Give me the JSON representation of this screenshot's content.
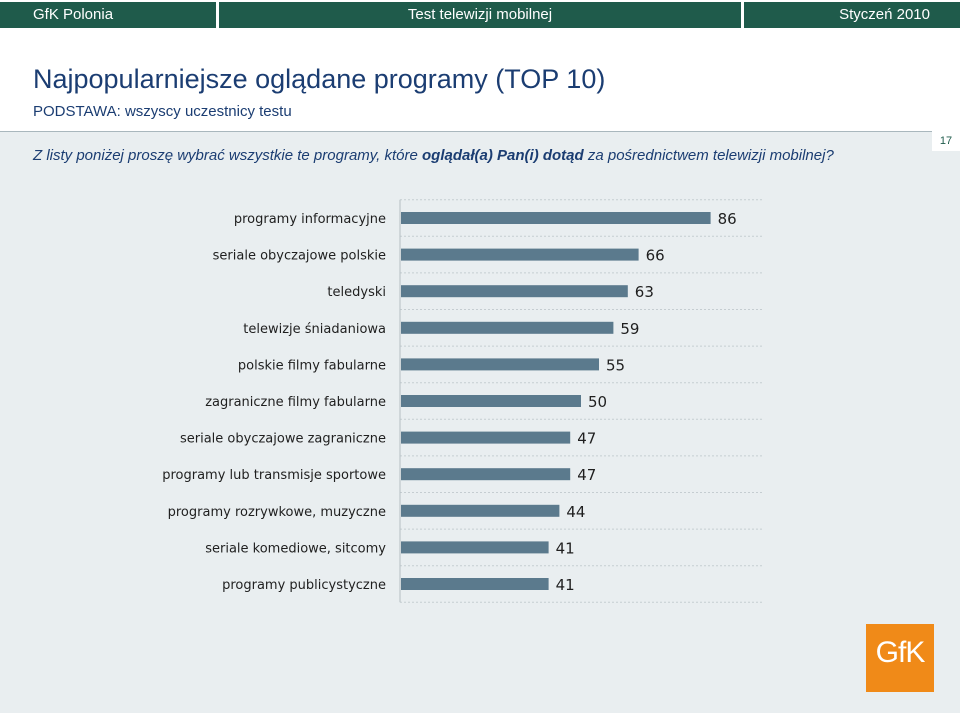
{
  "header": {
    "left": "GfK Polonia",
    "center": "Test telewizji mobilnej",
    "right": "Styczeń 2010"
  },
  "slide": {
    "title": "Najpopularniejsze oglądane programy (TOP 10)",
    "subtitle": "PODSTAWA: wszyscy uczestnicy testu",
    "question_part1": "Z listy poniżej proszę wybrać wszystkie te programy, które ",
    "question_bold": "oglądał(a) Pan(i) dotąd",
    "question_part2": " za pośrednictwem telewizji  mobilnej?",
    "page_number": "17"
  },
  "logo": {
    "text": "GfK"
  },
  "colors": {
    "bar": "#5b7a8d",
    "accent": "#1f5b4b",
    "title": "#1b3d72",
    "logo": "#f08a18"
  },
  "chart_data": {
    "type": "bar",
    "orientation": "horizontal",
    "categories": [
      "programy informacyjne",
      "seriale obyczajowe polskie",
      "teledyski",
      "telewizje śniadaniowa",
      "polskie filmy fabularne",
      "zagraniczne  filmy  fabularne",
      "seriale  obyczajowe  zagraniczne",
      "programy lub transmisje  sportowe",
      "programy rozrywkowe,  muzyczne",
      "seriale komediowe, sitcomy",
      "programy publicystyczne"
    ],
    "values": [
      86,
      66,
      63,
      59,
      55,
      50,
      47,
      47,
      44,
      41,
      41
    ],
    "xlim": [
      0,
      100
    ],
    "grid": true
  }
}
